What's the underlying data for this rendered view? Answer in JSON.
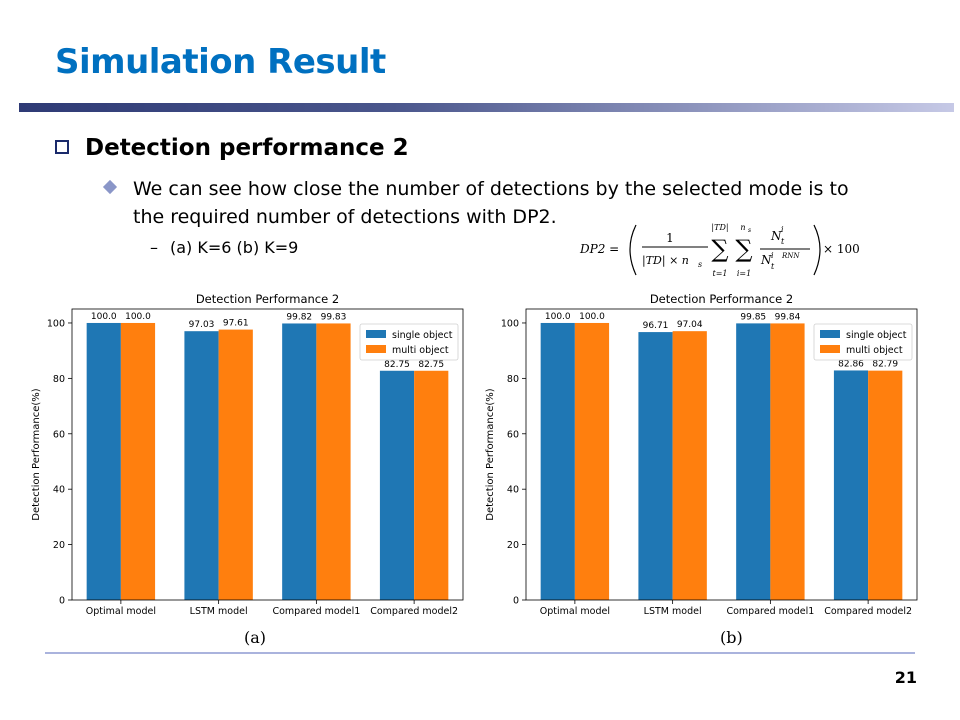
{
  "slide": {
    "title": "Simulation Result",
    "heading": "Detection performance 2",
    "bullet": "We can see how close the number of detections by the selected mode is to the required number of detections with DP2.",
    "subbullet": "(a) K=6 (b) K=9",
    "page_number": "21",
    "formula": {
      "lhs": "DP2 =",
      "frac_num": "1",
      "frac_den": "|TD| × n",
      "sub_s": "s",
      "sum1_top": "|TD|",
      "sum1_bot": "t=1",
      "sum2_top": "n",
      "sum2_bot": "i=1",
      "n_top": "N",
      "n_top_sup": "i",
      "n_top_sub": "t",
      "n_bot": "N",
      "n_bot_sup": "i",
      "n_bot_sub": "t",
      "n_bot_sub2": "RNN",
      "times": "× 100"
    }
  },
  "chart_data": [
    {
      "type": "bar",
      "caption": "(a)",
      "title": "Detection Performance 2",
      "xlabel": "",
      "ylabel": "Detection Performance(%)",
      "categories": [
        "Optimal model",
        "LSTM model",
        "Compared model1",
        "Compared model2"
      ],
      "series": [
        {
          "name": "single object",
          "color": "#1f77b4",
          "values": [
            100.0,
            97.03,
            99.82,
            82.75
          ],
          "labels": [
            "100.0",
            "97.03",
            "99.82",
            "82.75"
          ]
        },
        {
          "name": "multi object",
          "color": "#ff7f0e",
          "values": [
            100.0,
            97.61,
            99.83,
            82.75
          ],
          "labels": [
            "100.0",
            "97.61",
            "99.83",
            "82.75"
          ]
        }
      ],
      "ylim": [
        0,
        100
      ],
      "yticks": [
        0,
        20,
        40,
        60,
        80,
        100
      ],
      "grid": false,
      "legend": "upper-right"
    },
    {
      "type": "bar",
      "caption": "(b)",
      "title": "Detection Performance 2",
      "xlabel": "",
      "ylabel": "Detection Performance(%)",
      "categories": [
        "Optimal model",
        "LSTM model",
        "Compared model1",
        "Compared model2"
      ],
      "series": [
        {
          "name": "single object",
          "color": "#1f77b4",
          "values": [
            100.0,
            96.71,
            99.85,
            82.86
          ],
          "labels": [
            "100.0",
            "96.71",
            "99.85",
            "82.86"
          ]
        },
        {
          "name": "multi object",
          "color": "#ff7f0e",
          "values": [
            100.0,
            97.04,
            99.84,
            82.79
          ],
          "labels": [
            "100.0",
            "97.04",
            "99.84",
            "82.79"
          ]
        }
      ],
      "ylim": [
        0,
        100
      ],
      "yticks": [
        0,
        20,
        40,
        60,
        80,
        100
      ],
      "grid": false,
      "legend": "upper-right"
    }
  ]
}
